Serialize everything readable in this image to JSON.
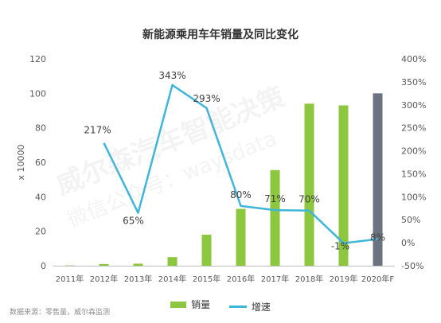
{
  "chart_data": {
    "type": "bar",
    "title": "新能源乘用车年销量及同比变化",
    "ylabel": "x 10000",
    "ylim": [
      0,
      120
    ],
    "y_ticks": [
      0,
      20,
      40,
      60,
      80,
      100,
      120
    ],
    "y2lim": [
      -50,
      400
    ],
    "y2_ticks": [
      "-50%",
      "0%",
      "50%",
      "100%",
      "150%",
      "200%",
      "250%",
      "300%",
      "350%",
      "400%"
    ],
    "y2_tick_values": [
      -50,
      0,
      50,
      100,
      150,
      200,
      250,
      300,
      350,
      400
    ],
    "categories": [
      "2011年",
      "2012年",
      "2013年",
      "2014年",
      "2015年",
      "2016年",
      "2017年",
      "2018年",
      "2019年",
      "2020年F"
    ],
    "series": [
      {
        "name": "销量",
        "type": "bar",
        "axis": "left",
        "values": [
          0.2,
          1,
          1.2,
          5,
          18,
          33,
          55.5,
          94,
          93,
          100
        ],
        "colors": [
          "#8dc63f",
          "#8dc63f",
          "#8dc63f",
          "#8dc63f",
          "#8dc63f",
          "#8dc63f",
          "#8dc63f",
          "#8dc63f",
          "#8dc63f",
          "#6b7280"
        ]
      },
      {
        "name": "增速",
        "type": "line",
        "axis": "right",
        "values": [
          null,
          217,
          65,
          343,
          293,
          80,
          71,
          70,
          -1,
          8
        ],
        "labels": [
          "",
          "217%",
          "65%",
          "343%",
          "293%",
          "80%",
          "71%",
          "70%",
          "-1%",
          "8%"
        ],
        "color": "#3fb5d9"
      }
    ],
    "legend_position": "bottom-center",
    "grid": false
  },
  "legend": {
    "bar_label": "销量",
    "line_label": "增速"
  },
  "watermark": {
    "line1": "威尔森汽车智能决策",
    "line2": "微信公众号：waysdata"
  },
  "source": "数据来源：零售量，威尔森监测"
}
